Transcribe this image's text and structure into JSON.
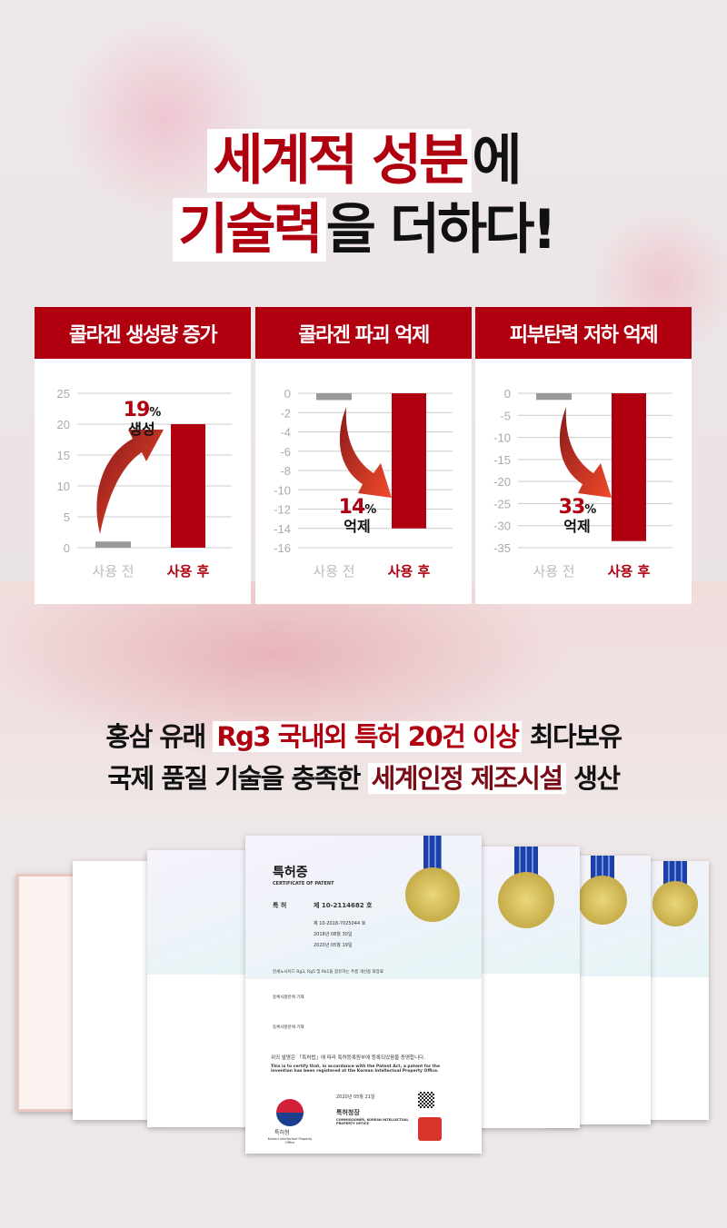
{
  "headline": {
    "line1_highlight": "세계적 성분",
    "line1_rest": "에",
    "line2_highlight": "기술력",
    "line2_rest": "을 더하다!"
  },
  "colors": {
    "accent": "#b0000f",
    "before_bar": "#999999",
    "grid": "#cccccc"
  },
  "chart_data": [
    {
      "type": "bar",
      "title": "콜라겐 생성량 증가",
      "categories": [
        "사용 전",
        "사용 후"
      ],
      "values": [
        1,
        20
      ],
      "ylim": [
        0,
        25
      ],
      "yticks": [
        0,
        5,
        10,
        15,
        20,
        25
      ],
      "annotation": {
        "value": "19",
        "unit": "%",
        "label": "생성"
      },
      "arrow": "up",
      "grid": true
    },
    {
      "type": "bar",
      "title": "콜라겐 파괴 억제",
      "categories": [
        "사용 전",
        "사용 후"
      ],
      "values": [
        -0.7,
        -14
      ],
      "ylim": [
        -16,
        0
      ],
      "yticks": [
        0,
        -2,
        -4,
        -6,
        -8,
        -10,
        -12,
        -14,
        -16
      ],
      "annotation": {
        "value": "14",
        "unit": "%",
        "label": "억제"
      },
      "arrow": "down",
      "grid": true
    },
    {
      "type": "bar",
      "title": "피부탄력 저하 억제",
      "categories": [
        "사용 전",
        "사용 후"
      ],
      "values": [
        -1.5,
        -33.5
      ],
      "ylim": [
        -35,
        0
      ],
      "yticks": [
        0,
        -5,
        -10,
        -15,
        -20,
        -25,
        -30,
        -35
      ],
      "annotation": {
        "value": "33",
        "unit": "%",
        "label": "억제"
      },
      "arrow": "down",
      "grid": true
    }
  ],
  "subtext": {
    "line1": {
      "pre": "홍삼 유래 ",
      "highlight": "Rg3 국내외 특허 20건 이상",
      "post": " 최다보유"
    },
    "line2": {
      "pre": "국제 품질 기술을 충족한 ",
      "highlight": "세계인정 제조시설",
      "post": " 생산"
    }
  },
  "certificate": {
    "title": "특허증",
    "title_en": "CERTIFICATE OF PATENT",
    "patent_label": "특 허",
    "patent_no": "제 10-2114682 호",
    "application_no": "제 10-2018-7025044 호",
    "filing_date": "2018년 08월 30일",
    "registration_date": "2020년 05월 19일",
    "invention": "진세노사이드 Rg3, Rg5 및 Rk1을 함유하는 주름 개선용 화장료",
    "holder": "등록사항란에 기재",
    "inventor": "등록사항란에 기재",
    "statement_kr": "위의 발명은 「특허법」에 따라 특허등록원부에 등록되었음을 증명합니다.",
    "statement_en": "This is to certify that, in accordance with the Patent Act, a patent for the invention has been registered at the Korean Intellectual Property Office.",
    "date": "2020년 05월 21일",
    "issuer": "특허청장",
    "issuer_en": "COMMISSIONER, KOREAN INTELLECTUAL PROPERTY OFFICE",
    "office": "특허청",
    "office_en": "Korean Intellectual Property Office"
  }
}
